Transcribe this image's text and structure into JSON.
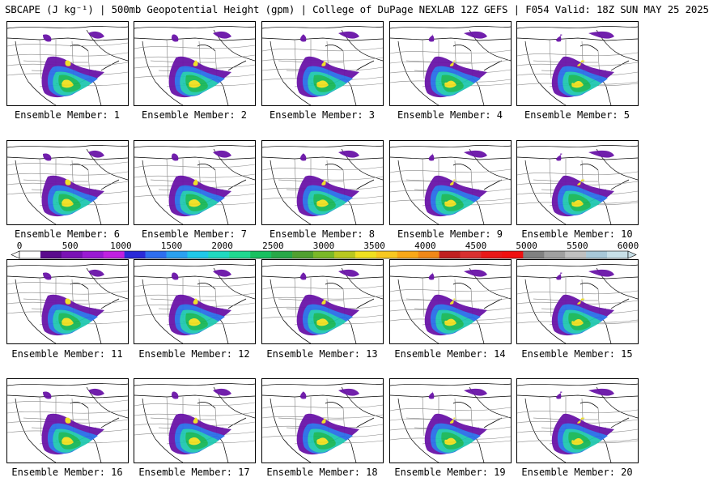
{
  "header": {
    "title": "SBCAPE (J kg⁻¹) | 500mb Geopotential Height (gpm) | College of DuPage NEXLAB 12Z GEFS | F054 Valid: 18Z SUN MAY 25 2025"
  },
  "members": [
    {
      "label": "Ensemble Member: 1"
    },
    {
      "label": "Ensemble Member: 2"
    },
    {
      "label": "Ensemble Member: 3"
    },
    {
      "label": "Ensemble Member: 4"
    },
    {
      "label": "Ensemble Member: 5"
    },
    {
      "label": "Ensemble Member: 6"
    },
    {
      "label": "Ensemble Member: 7"
    },
    {
      "label": "Ensemble Member: 8"
    },
    {
      "label": "Ensemble Member: 9"
    },
    {
      "label": "Ensemble Member: 10"
    },
    {
      "label": "Ensemble Member: 11"
    },
    {
      "label": "Ensemble Member: 12"
    },
    {
      "label": "Ensemble Member: 13"
    },
    {
      "label": "Ensemble Member: 14"
    },
    {
      "label": "Ensemble Member: 15"
    },
    {
      "label": "Ensemble Member: 16"
    },
    {
      "label": "Ensemble Member: 17"
    },
    {
      "label": "Ensemble Member: 18"
    },
    {
      "label": "Ensemble Member: 19"
    },
    {
      "label": "Ensemble Member: 20"
    }
  ],
  "colorbar": {
    "tick_labels": [
      "0",
      "500",
      "1000",
      "1500",
      "2000",
      "2500",
      "3000",
      "3500",
      "4000",
      "4500",
      "5000",
      "5500",
      "6000"
    ],
    "colors": [
      "#ffffff",
      "#5a0a8c",
      "#7a12b4",
      "#9a1ad2",
      "#c020e0",
      "#2a2ad8",
      "#2e6ef0",
      "#2aa0f0",
      "#20c8e8",
      "#20d8c0",
      "#20d890",
      "#18c060",
      "#28a848",
      "#50a030",
      "#7ab828",
      "#b8c820",
      "#f0e020",
      "#f8c820",
      "#f8a818",
      "#f08818",
      "#c02020",
      "#d83030",
      "#e81818",
      "#f01010",
      "#808080",
      "#a0a0a0",
      "#c0c0c0",
      "#a8c8d8",
      "#c8e0e8"
    ]
  }
}
